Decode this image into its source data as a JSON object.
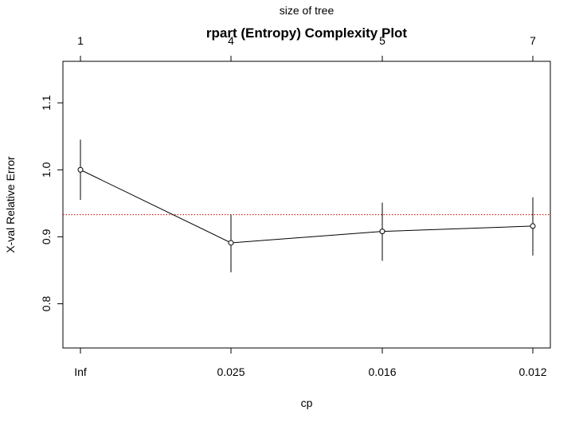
{
  "chart_data": {
    "type": "line",
    "title": "rpart (Entropy) Complexity Plot",
    "xlabel": "cp",
    "ylabel": "X-val Relative Error",
    "top_axis_label": "size of tree",
    "x_categories": [
      "Inf",
      "0.025",
      "0.016",
      "0.012"
    ],
    "top_ticks": [
      "1",
      "4",
      "5",
      "7"
    ],
    "y_ticks": [
      0.8,
      0.9,
      1.0,
      1.1
    ],
    "y_tick_labels": [
      "0.8",
      "0.9",
      "1.0",
      "1.1"
    ],
    "ylim": [
      0.734,
      1.162
    ],
    "series": [
      {
        "values": [
          1.0,
          0.891,
          0.908,
          0.916
        ],
        "error_low": [
          0.955,
          0.847,
          0.864,
          0.872
        ],
        "error_high": [
          1.045,
          0.933,
          0.951,
          0.959
        ]
      }
    ],
    "reference_line": {
      "y": 0.933,
      "color": "#cc0000",
      "style": "dotted"
    },
    "grid": false,
    "colors": {
      "line": "#000000",
      "reference": "#cc0000"
    }
  }
}
